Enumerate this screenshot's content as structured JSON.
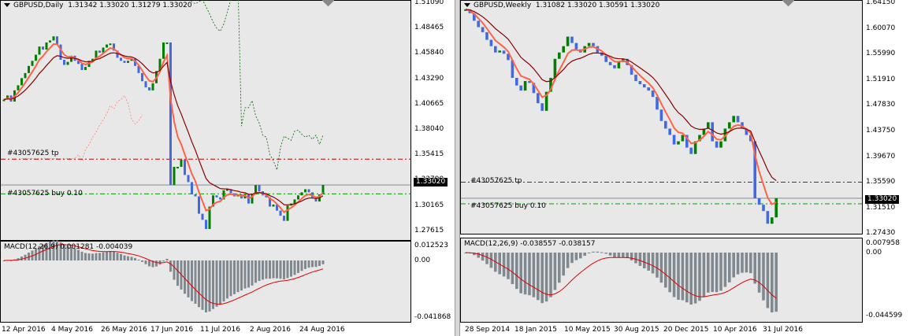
{
  "left": {
    "symbol": "GBPUSD,Daily",
    "ohlc": "1.31342 1.33020 1.31279 1.33020",
    "price_ticks": [
      "1.51090",
      "1.48465",
      "1.45840",
      "1.43290",
      "1.40665",
      "1.38040",
      "1.35415",
      "1.32790",
      "1.30165",
      "1.27615"
    ],
    "current_price": "1.33020",
    "tp_label": "#43057625 tp",
    "buy_label": "#43057625 buy 0.10",
    "tp_level": 1.3555,
    "buy_level": 1.3215,
    "macd_title": "MACD(12,26,9) 0.001281 -0.004039",
    "macd_ticks": [
      "0.012523",
      "0.00",
      "-0.041868"
    ],
    "date_ticks": [
      "12 Apr 2016",
      "4 May 2016",
      "26 May 2016",
      "17 Jun 2016",
      "11 Jul 2016",
      "2 Aug 2016",
      "24 Aug 2016"
    ]
  },
  "right": {
    "symbol": "GBPUSD,Weekly",
    "ohlc": "1.31082 1.33020 1.30591 1.33020",
    "price_ticks": [
      "1.64150",
      "1.60070",
      "1.55990",
      "1.51910",
      "1.47830",
      "1.43750",
      "1.39670",
      "1.35590",
      "1.31510",
      "1.27430"
    ],
    "current_price": "1.33020",
    "tp_label": "#43057625 tp",
    "buy_label": "#43057625 buy 0.10",
    "tp_level": 1.3555,
    "buy_level": 1.3215,
    "macd_title": "MACD(12,26,9) -0.038557 -0.038157",
    "macd_ticks": [
      "0.007958",
      "0.00",
      "-0.044599"
    ],
    "date_ticks": [
      "28 Sep 2014",
      "18 Jan 2015",
      "10 May 2015",
      "30 Aug 2015",
      "20 Dec 2015",
      "10 Apr 2016",
      "31 Jul 2016"
    ]
  },
  "colors": {
    "bull_bar": "#008000",
    "bear_bar": "#4169e1",
    "ma_fast": "#ff6347",
    "ma_slow": "#8b0000",
    "tp_line": "#c00000",
    "buy_line": "#00a000",
    "macd_hist": "#808890",
    "macd_signal": "#e00000",
    "current_price_line": "#708090",
    "envelope": "#006400"
  },
  "chart_data": [
    {
      "type": "candlestick",
      "title": "GBPUSD,Daily",
      "ylim": [
        1.2762,
        1.5109
      ],
      "series": [
        {
          "name": "price",
          "values": [
            1.414,
            1.418,
            1.412,
            1.423,
            1.428,
            1.435,
            1.44,
            1.447,
            1.452,
            1.458,
            1.466,
            1.463,
            1.47,
            1.472,
            1.476,
            1.468,
            1.453,
            1.448,
            1.451,
            1.457,
            1.452,
            1.449,
            1.443,
            1.446,
            1.452,
            1.454,
            1.462,
            1.46,
            1.465,
            1.468,
            1.469,
            1.462,
            1.455,
            1.452,
            1.45,
            1.452,
            1.454,
            1.447,
            1.44,
            1.432,
            1.426,
            1.423,
            1.43,
            1.442,
            1.454,
            1.47,
            1.47,
            1.33,
            1.348,
            1.348,
            1.355,
            1.34,
            1.333,
            1.321,
            1.319,
            1.302,
            1.296,
            1.287,
            1.309,
            1.32,
            1.318,
            1.316,
            1.325,
            1.326,
            1.322,
            1.319,
            1.321,
            1.317,
            1.321,
            1.312,
            1.321,
            1.33,
            1.324,
            1.32,
            1.318,
            1.309,
            1.311,
            1.305,
            1.3,
            1.295,
            1.31,
            1.312,
            1.316,
            1.32,
            1.323,
            1.326,
            1.323,
            1.318,
            1.314,
            1.321,
            1.3302
          ]
        }
      ]
    },
    {
      "type": "candlestick",
      "title": "GBPUSD,Weekly",
      "ylim": [
        1.2743,
        1.6415
      ],
      "series": [
        {
          "name": "price",
          "values": [
            1.628,
            1.622,
            1.61,
            1.6,
            1.592,
            1.58,
            1.57,
            1.56,
            1.563,
            1.558,
            1.548,
            1.52,
            1.508,
            1.5,
            1.515,
            1.512,
            1.496,
            1.48,
            1.468,
            1.498,
            1.52,
            1.55,
            1.56,
            1.57,
            1.585,
            1.575,
            1.565,
            1.56,
            1.57,
            1.575,
            1.57,
            1.56,
            1.555,
            1.545,
            1.54,
            1.535,
            1.545,
            1.55,
            1.54,
            1.525,
            1.515,
            1.51,
            1.505,
            1.5,
            1.49,
            1.47,
            1.452,
            1.44,
            1.43,
            1.415,
            1.42,
            1.43,
            1.41,
            1.4,
            1.42,
            1.43,
            1.44,
            1.45,
            1.42,
            1.41,
            1.42,
            1.44,
            1.45,
            1.46,
            1.45,
            1.44,
            1.43,
            1.42,
            1.33,
            1.32,
            1.31,
            1.29,
            1.3,
            1.3302
          ]
        }
      ]
    }
  ]
}
